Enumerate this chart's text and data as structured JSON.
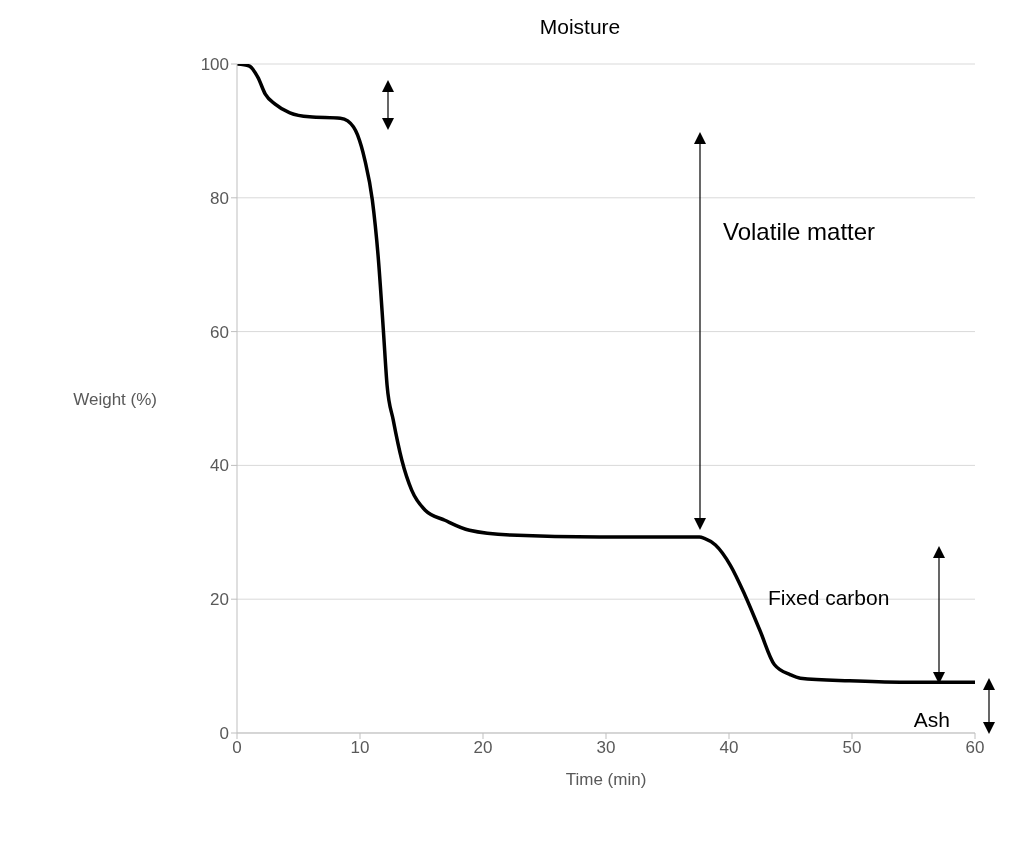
{
  "chart_data": {
    "type": "line",
    "xlabel": "Time (min)",
    "ylabel": "Weight (%)",
    "x": [
      0,
      1,
      1.7,
      2.3,
      3.1,
      4.3,
      5.9,
      8.4,
      9,
      9.8,
      10.4,
      11,
      11.5,
      11.9,
      12.2,
      12.7,
      13.4,
      14.2,
      15.3,
      16.9,
      18.9,
      22.2,
      29.5,
      37.6,
      38,
      38.9,
      40.1,
      41.3,
      42.5,
      43.7,
      45,
      45.8,
      49.8,
      53.9,
      60
    ],
    "series": [
      {
        "color": "#000000",
        "values": [
          100,
          99.7,
          98,
          95.5,
          94,
          92.7,
          92.1,
          91.9,
          91.5,
          89.4,
          85.6,
          79.7,
          70.7,
          60.2,
          52,
          46.8,
          40.8,
          36.3,
          33.3,
          31.8,
          30.3,
          29.6,
          29.3,
          29.3,
          29.1,
          28.1,
          25.1,
          20.6,
          15.4,
          10.2,
          8.7,
          8.2,
          7.8,
          7.6,
          7.6
        ]
      }
    ],
    "xlim": [
      0,
      60
    ],
    "xticks": [
      0,
      10,
      20,
      30,
      40,
      50,
      60
    ],
    "ylim": [
      0,
      100
    ],
    "yticks": [
      0,
      20,
      40,
      60,
      80,
      100
    ],
    "grid": "y",
    "marker": "none",
    "line_style": "solid",
    "annotations": [
      "Moisture",
      "Volatile matter",
      "Fixed carbon",
      "Ash"
    ]
  }
}
